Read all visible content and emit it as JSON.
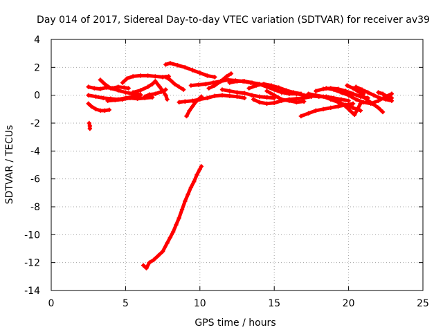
{
  "chart_data": {
    "type": "scatter",
    "title": "Day 014 of 2017, Sidereal Day-to-day VTEC variation (SDTVAR) for receiver av39",
    "xlabel": "GPS time / hours",
    "ylabel": "SDTVAR / TECUs",
    "xlim": [
      0,
      25
    ],
    "ylim": [
      -14,
      4
    ],
    "xticks": [
      0,
      5,
      10,
      15,
      20,
      25
    ],
    "yticks": [
      -14,
      -12,
      -10,
      -8,
      -6,
      -4,
      -2,
      0,
      2,
      4
    ],
    "xtick_labels": [
      "0",
      "5",
      "10",
      "15",
      "20",
      "25"
    ],
    "ytick_labels": [
      "-14",
      "-12",
      "-10",
      "-8",
      "-6",
      "-4",
      "-2",
      "0",
      "2",
      "4"
    ],
    "grid": true,
    "marker": "+",
    "series": [
      {
        "name": "s1",
        "color": "#ff0000",
        "x": [
          2.5,
          2.9,
          3.3,
          3.7,
          4.1,
          4.5,
          4.9,
          5.2
        ],
        "y": [
          0.6,
          0.5,
          0.45,
          0.55,
          0.5,
          0.6,
          0.55,
          0.5
        ]
      },
      {
        "name": "s2",
        "color": "#ff0000",
        "x": [
          2.5,
          2.7,
          3.0,
          3.3,
          3.6,
          3.9
        ],
        "y": [
          -0.6,
          -0.8,
          -1.0,
          -1.1,
          -1.1,
          -1.05
        ]
      },
      {
        "name": "s3",
        "color": "#ff0000",
        "x": [
          2.55,
          2.6,
          2.6
        ],
        "y": [
          -2.0,
          -2.2,
          -2.4
        ]
      },
      {
        "name": "s4",
        "color": "#ff0000",
        "x": [
          2.5,
          3.0,
          3.5,
          4.0,
          4.5,
          5.0,
          5.5,
          6.0
        ],
        "y": [
          0.0,
          -0.1,
          -0.2,
          -0.25,
          -0.3,
          -0.2,
          -0.1,
          0.0
        ]
      },
      {
        "name": "s5",
        "color": "#ff0000",
        "x": [
          3.3,
          3.6,
          4.0,
          4.5,
          5.0,
          5.5,
          6.0
        ],
        "y": [
          1.1,
          0.8,
          0.5,
          0.35,
          0.2,
          0.1,
          0.05
        ]
      },
      {
        "name": "s6",
        "color": "#ff0000",
        "x": [
          3.8,
          4.3,
          4.8,
          5.3,
          5.8,
          6.3,
          6.8
        ],
        "y": [
          -0.4,
          -0.35,
          -0.3,
          -0.2,
          -0.25,
          -0.2,
          -0.15
        ]
      },
      {
        "name": "s7",
        "color": "#ff0000",
        "x": [
          4.8,
          5.1,
          5.5,
          6.0,
          6.5,
          7.0,
          7.5,
          7.9
        ],
        "y": [
          0.9,
          1.2,
          1.35,
          1.4,
          1.4,
          1.35,
          1.3,
          1.35
        ]
      },
      {
        "name": "s8",
        "color": "#ff0000",
        "x": [
          5.5,
          6.0,
          6.5,
          6.8,
          7.0
        ],
        "y": [
          0.2,
          0.35,
          0.6,
          0.8,
          1.0
        ]
      },
      {
        "name": "s9",
        "color": "#ff0000",
        "x": [
          6.3,
          6.6,
          7.0,
          7.4,
          7.7
        ],
        "y": [
          -0.1,
          0.05,
          0.1,
          0.25,
          0.4
        ]
      },
      {
        "name": "s10",
        "color": "#ff0000",
        "x": [
          7.0,
          7.3,
          7.5,
          7.7,
          7.8
        ],
        "y": [
          1.0,
          0.6,
          0.3,
          0.0,
          -0.3
        ]
      },
      {
        "name": "s11",
        "color": "#ff0000",
        "x": [
          7.7,
          8.0,
          8.3,
          8.6,
          8.9
        ],
        "y": [
          1.3,
          1.1,
          0.8,
          0.6,
          0.4
        ]
      },
      {
        "name": "s12",
        "color": "#ff0000",
        "x": [
          7.7,
          8.0,
          8.5,
          9.0,
          9.5,
          10.0,
          10.5,
          11.0
        ],
        "y": [
          2.2,
          2.3,
          2.15,
          2.0,
          1.8,
          1.6,
          1.4,
          1.3
        ]
      },
      {
        "name": "s13",
        "color": "#ff0000",
        "x": [
          8.6,
          9.0,
          9.5,
          10.0,
          10.5,
          11.0,
          11.5,
          12.0,
          12.5,
          13.0
        ],
        "y": [
          -0.5,
          -0.45,
          -0.4,
          -0.3,
          -0.2,
          -0.05,
          0.0,
          -0.05,
          -0.1,
          -0.2
        ]
      },
      {
        "name": "s14",
        "color": "#ff0000",
        "x": [
          9.1,
          9.3,
          9.5,
          9.7,
          9.9,
          10.1
        ],
        "y": [
          -1.5,
          -1.1,
          -0.8,
          -0.5,
          -0.3,
          -0.1
        ]
      },
      {
        "name": "s15",
        "color": "#ff0000",
        "x": [
          9.4,
          9.9,
          10.4,
          10.9,
          11.4,
          11.9,
          12.4,
          12.9,
          13.4,
          13.9
        ],
        "y": [
          0.7,
          0.75,
          0.8,
          0.9,
          1.0,
          1.1,
          1.05,
          1.0,
          0.9,
          0.8
        ]
      },
      {
        "name": "s16",
        "color": "#ff0000",
        "x": [
          10.6,
          11.0,
          11.4,
          11.8,
          12.1
        ],
        "y": [
          0.5,
          0.7,
          1.0,
          1.35,
          1.55
        ]
      },
      {
        "name": "s17",
        "color": "#ff0000",
        "x": [
          11.5,
          12.0,
          12.5,
          13.0,
          13.5,
          14.0,
          14.5,
          15.0
        ],
        "y": [
          0.4,
          0.3,
          0.2,
          0.15,
          0.0,
          -0.1,
          -0.15,
          -0.2
        ]
      },
      {
        "name": "s18",
        "color": "#ff0000",
        "x": [
          12.0,
          12.5,
          13.0,
          13.5,
          14.0,
          14.5,
          15.0,
          15.5,
          16.0,
          16.5
        ],
        "y": [
          0.9,
          1.0,
          1.0,
          0.9,
          0.8,
          0.6,
          0.4,
          0.2,
          0.1,
          0.1
        ]
      },
      {
        "name": "s19",
        "color": "#ff0000",
        "x": [
          13.3,
          13.8,
          14.3,
          14.8,
          15.3,
          15.8,
          16.3,
          16.8
        ],
        "y": [
          0.5,
          0.7,
          0.8,
          0.7,
          0.55,
          0.35,
          0.2,
          0.1
        ]
      },
      {
        "name": "s20",
        "color": "#ff0000",
        "x": [
          13.6,
          14.0,
          14.5,
          15.0,
          15.5,
          16.0,
          16.5,
          17.0,
          17.5
        ],
        "y": [
          -0.3,
          -0.5,
          -0.6,
          -0.55,
          -0.4,
          -0.3,
          -0.25,
          -0.2,
          -0.1
        ]
      },
      {
        "name": "s21",
        "color": "#ff0000",
        "x": [
          14.5,
          15.0,
          15.5,
          16.0,
          16.5,
          17.0
        ],
        "y": [
          0.3,
          0.0,
          -0.3,
          -0.4,
          -0.5,
          -0.45
        ]
      },
      {
        "name": "s22",
        "color": "#ff0000",
        "x": [
          15.5,
          16.0,
          16.5,
          17.0,
          17.5,
          18.0,
          18.5,
          19.0,
          19.5,
          20.0
        ],
        "y": [
          0.3,
          0.2,
          0.1,
          0.0,
          -0.05,
          -0.1,
          -0.1,
          -0.2,
          -0.3,
          -0.4
        ]
      },
      {
        "name": "s23",
        "color": "#ff0000",
        "x": [
          16.8,
          17.3,
          17.8,
          18.3,
          18.8,
          19.3,
          19.8,
          20.3
        ],
        "y": [
          -1.5,
          -1.3,
          -1.1,
          -1.0,
          -0.9,
          -0.8,
          -0.7,
          -0.6
        ]
      },
      {
        "name": "s24",
        "color": "#ff0000",
        "x": [
          17.3,
          17.8,
          18.3,
          18.8,
          19.3,
          19.8,
          20.3,
          20.8
        ],
        "y": [
          0.1,
          0.0,
          -0.1,
          -0.3,
          -0.5,
          -0.7,
          -0.9,
          -1.1
        ]
      },
      {
        "name": "s25",
        "color": "#ff0000",
        "x": [
          17.8,
          18.3,
          18.8,
          19.3,
          19.8,
          20.3,
          20.8,
          21.3
        ],
        "y": [
          0.3,
          0.45,
          0.5,
          0.45,
          0.3,
          0.1,
          -0.1,
          -0.2
        ]
      },
      {
        "name": "s26",
        "color": "#ff0000",
        "x": [
          18.5,
          19.0,
          19.5,
          20.0,
          20.5,
          21.0,
          21.5,
          22.0,
          22.5,
          22.9
        ],
        "y": [
          0.5,
          0.4,
          0.2,
          0.0,
          -0.3,
          -0.5,
          -0.6,
          -0.4,
          -0.1,
          0.1
        ]
      },
      {
        "name": "s27",
        "color": "#ff0000",
        "x": [
          19.4,
          19.8,
          20.2,
          20.4,
          20.6,
          20.8
        ],
        "y": [
          -0.5,
          -0.8,
          -1.2,
          -1.4,
          -1.0,
          -0.6
        ]
      },
      {
        "name": "s28",
        "color": "#ff0000",
        "x": [
          20.5,
          20.9,
          21.3,
          21.7,
          22.1,
          22.5,
          22.9
        ],
        "y": [
          0.6,
          0.4,
          0.2,
          0.0,
          -0.2,
          -0.3,
          -0.4
        ]
      },
      {
        "name": "s29",
        "color": "#ff0000",
        "x": [
          20.8,
          21.2,
          21.6,
          22.0,
          22.3
        ],
        "y": [
          0.1,
          -0.3,
          -0.6,
          -0.9,
          -1.2
        ]
      },
      {
        "name": "s30",
        "color": "#ff0000",
        "x": [
          19.9,
          20.3,
          20.6,
          21.0
        ],
        "y": [
          0.7,
          0.5,
          0.3,
          0.1
        ]
      },
      {
        "name": "s31",
        "color": "#ff0000",
        "x": [
          22.0,
          22.3,
          22.6,
          22.9
        ],
        "y": [
          0.2,
          0.1,
          -0.1,
          -0.2
        ]
      },
      {
        "name": "s32",
        "color": "#ff0000",
        "x": [
          6.2,
          6.4,
          6.6,
          6.9,
          7.2,
          7.5,
          7.8,
          8.0,
          8.2,
          8.4,
          8.6,
          8.8,
          9.0,
          9.2,
          9.4,
          9.6,
          9.8,
          10.0,
          10.1
        ],
        "y": [
          -12.2,
          -12.4,
          -12.0,
          -11.8,
          -11.5,
          -11.2,
          -10.6,
          -10.2,
          -9.8,
          -9.3,
          -8.8,
          -8.2,
          -7.6,
          -7.1,
          -6.6,
          -6.2,
          -5.7,
          -5.3,
          -5.1
        ]
      }
    ]
  }
}
